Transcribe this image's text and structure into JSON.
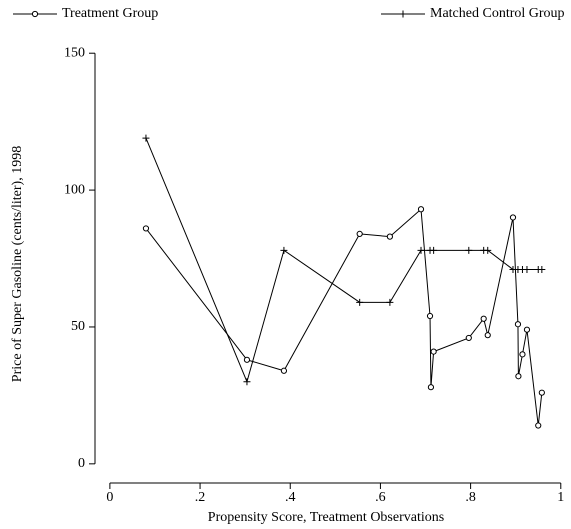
{
  "chart_data": {
    "type": "line",
    "x_label": "Propensity Score, Treatment Observations",
    "y_label": "Price of Super Gasoline (cents/liter), 1998",
    "series": [
      {
        "name": "Treatment Group",
        "color": "#000000",
        "marker": "circle",
        "x": [
          0.08,
          0.304,
          0.386,
          0.554,
          0.621,
          0.69,
          0.71,
          0.712,
          0.718,
          0.796,
          0.829,
          0.838,
          0.894,
          0.905,
          0.906,
          0.915,
          0.925,
          0.95,
          0.958
        ],
        "values": [
          86,
          38,
          34,
          84,
          83,
          93,
          54,
          28,
          41,
          46,
          53,
          47,
          90,
          51,
          32,
          40,
          49,
          14,
          26
        ]
      },
      {
        "name": "Matched Control Group",
        "color": "#000000",
        "marker": "plus",
        "x": [
          0.08,
          0.304,
          0.386,
          0.554,
          0.621,
          0.69,
          0.71,
          0.718,
          0.796,
          0.829,
          0.838,
          0.894,
          0.905,
          0.915,
          0.925,
          0.95,
          0.958
        ],
        "values": [
          119,
          30,
          78,
          59,
          59,
          78,
          78,
          78,
          78,
          78,
          78,
          71,
          71,
          71,
          71,
          71,
          71
        ]
      }
    ],
    "xlim": [
      -0.033,
      1.016
    ],
    "xticks": [
      0,
      {
        "value": 0.2,
        "label": ".2"
      },
      {
        "value": 0.4,
        "label": ".4"
      },
      {
        "value": 0.6,
        "label": ".6"
      },
      {
        "value": 0.8,
        "label": ".8"
      },
      1
    ],
    "ylim": [
      -7,
      153
    ],
    "yticks": [
      0,
      50,
      100,
      150
    ],
    "grid": false,
    "legend": "top"
  }
}
